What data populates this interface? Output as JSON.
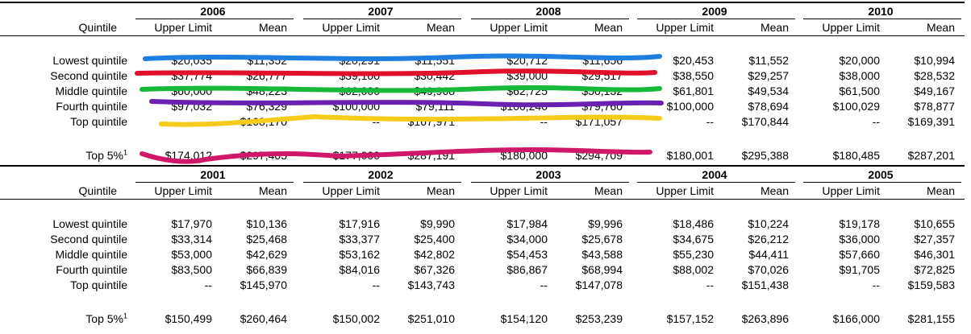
{
  "top_panel": {
    "years": [
      "2006",
      "2007",
      "2008",
      "2009",
      "2010"
    ],
    "col_headers": {
      "quintile": "Quintile",
      "upper": "Upper Limit",
      "mean": "Mean"
    },
    "rows": [
      {
        "label": "Lowest quintile",
        "values": [
          [
            "$20,035",
            "$11,352"
          ],
          [
            "$20,291",
            "$11,551"
          ],
          [
            "$20,712",
            "$11,656"
          ],
          [
            "$20,453",
            "$11,552"
          ],
          [
            "$20,000",
            "$10,994"
          ]
        ]
      },
      {
        "label": "Second quintile",
        "values": [
          [
            "$37,774",
            "$26,777"
          ],
          [
            "$39,100",
            "$30,442"
          ],
          [
            "$39,000",
            "$29,517"
          ],
          [
            "$38,550",
            "$29,257"
          ],
          [
            "$38,000",
            "$28,532"
          ]
        ]
      },
      {
        "label": "Middle quintile",
        "values": [
          [
            "$60,000",
            "$48,223"
          ],
          [
            "$62,000",
            "$49,968"
          ],
          [
            "$62,725",
            "$50,132"
          ],
          [
            "$61,801",
            "$49,534"
          ],
          [
            "$61,500",
            "$49,167"
          ]
        ]
      },
      {
        "label": "Fourth quintile",
        "values": [
          [
            "$97,032",
            "$76,329"
          ],
          [
            "$100,000",
            "$79,111"
          ],
          [
            "$100,240",
            "$79,760"
          ],
          [
            "$100,000",
            "$78,694"
          ],
          [
            "$100,029",
            "$78,877"
          ]
        ]
      },
      {
        "label": "Top quintile",
        "values": [
          [
            "--",
            "$168,170"
          ],
          [
            "--",
            "$167,971"
          ],
          [
            "--",
            "$171,057"
          ],
          [
            "--",
            "$170,844"
          ],
          [
            "--",
            "$169,391"
          ]
        ]
      }
    ],
    "top5": {
      "label": "Top 5%",
      "sup": "1",
      "values": [
        [
          "$174,012",
          "$297,405"
        ],
        [
          "$177,000",
          "$287,191"
        ],
        [
          "$180,000",
          "$294,709"
        ],
        [
          "$180,001",
          "$295,388"
        ],
        [
          "$180,485",
          "$287,201"
        ]
      ]
    }
  },
  "bottom_panel": {
    "years": [
      "2001",
      "2002",
      "2003",
      "2004",
      "2005"
    ],
    "col_headers": {
      "quintile": "Quintile",
      "upper": "Upper Limit",
      "mean": "Mean"
    },
    "rows": [
      {
        "label": "Lowest quintile",
        "values": [
          [
            "$17,970",
            "$10,136"
          ],
          [
            "$17,916",
            "$9,990"
          ],
          [
            "$17,984",
            "$9,996"
          ],
          [
            "$18,486",
            "$10,224"
          ],
          [
            "$19,178",
            "$10,655"
          ]
        ]
      },
      {
        "label": "Second quintile",
        "values": [
          [
            "$33,314",
            "$25,468"
          ],
          [
            "$33,377",
            "$25,400"
          ],
          [
            "$34,000",
            "$25,678"
          ],
          [
            "$34,675",
            "$26,212"
          ],
          [
            "$36,000",
            "$27,357"
          ]
        ]
      },
      {
        "label": "Middle quintile",
        "values": [
          [
            "$53,000",
            "$42,629"
          ],
          [
            "$53,162",
            "$42,802"
          ],
          [
            "$54,453",
            "$43,588"
          ],
          [
            "$55,230",
            "$44,411"
          ],
          [
            "$57,660",
            "$46,301"
          ]
        ]
      },
      {
        "label": "Fourth quintile",
        "values": [
          [
            "$83,500",
            "$66,839"
          ],
          [
            "$84,016",
            "$67,326"
          ],
          [
            "$86,867",
            "$68,994"
          ],
          [
            "$88,002",
            "$70,026"
          ],
          [
            "$91,705",
            "$72,825"
          ]
        ]
      },
      {
        "label": "Top quintile",
        "values": [
          [
            "--",
            "$145,970"
          ],
          [
            "--",
            "$143,743"
          ],
          [
            "--",
            "$147,078"
          ],
          [
            "--",
            "$151,438"
          ],
          [
            "--",
            "$159,583"
          ]
        ]
      }
    ],
    "top5": {
      "label": "Top 5%",
      "sup": "1",
      "values": [
        [
          "$150,499",
          "$260,464"
        ],
        [
          "$150,002",
          "$251,010"
        ],
        [
          "$154,120",
          "$253,239"
        ],
        [
          "$157,152",
          "$263,896"
        ],
        [
          "$166,000",
          "$281,155"
        ]
      ]
    }
  },
  "annotations": {
    "colors": [
      "#1e7fe0",
      "#e0102a",
      "#18b83a",
      "#6a20b0",
      "#f5cc1a",
      "#d0186a"
    ]
  }
}
